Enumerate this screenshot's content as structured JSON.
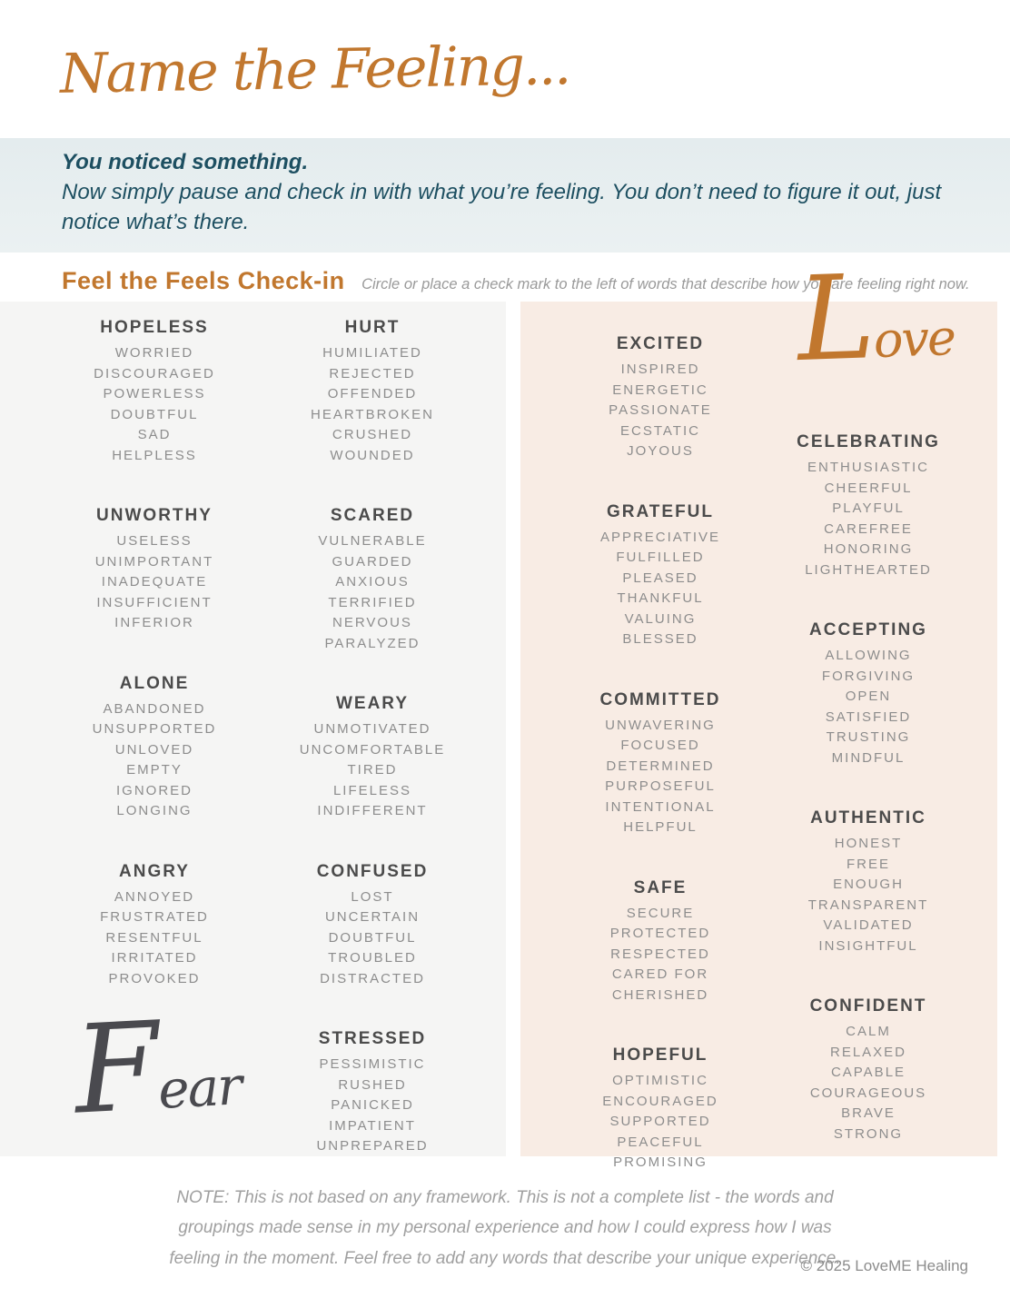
{
  "header": {
    "title": "Name the Feeling..."
  },
  "intro": {
    "line1": "You noticed something.",
    "line2": "Now simply pause and check in with what you’re feeling. You don’t need to figure it out, just notice what’s there."
  },
  "checkin": {
    "title": "Feel the Feels Check-in",
    "instruction": "Circle or place a check mark to the left of words that describe how you are feeling right now."
  },
  "colors": {
    "accent_orange": "#c1772e",
    "teal_text": "#1d4f61",
    "intro_band_bg": "#e7eef0",
    "fear_panel_bg": "#f5f5f4",
    "love_panel_bg": "#f8ece4",
    "heading_gray": "#4b4b4b",
    "word_gray": "#8d8d8d",
    "fear_script_gray": "#4a4a4f"
  },
  "sections": {
    "fear": {
      "label": "Fear",
      "label_cap": "F",
      "label_rest": "ear",
      "columns": [
        {
          "groups": [
            {
              "heading": "HOPELESS",
              "words": [
                "WORRIED",
                "DISCOURAGED",
                "POWERLESS",
                "DOUBTFUL",
                "SAD",
                "HELPLESS"
              ]
            },
            {
              "heading": "UNWORTHY",
              "words": [
                "USELESS",
                "UNIMPORTANT",
                "INADEQUATE",
                "INSUFFICIENT",
                "INFERIOR"
              ]
            },
            {
              "heading": "ALONE",
              "words": [
                "ABANDONED",
                "UNSUPPORTED",
                "UNLOVED",
                "EMPTY",
                "IGNORED",
                "LONGING"
              ]
            },
            {
              "heading": "ANGRY",
              "words": [
                "ANNOYED",
                "FRUSTRATED",
                "RESENTFUL",
                "IRRITATED",
                "PROVOKED"
              ]
            }
          ]
        },
        {
          "groups": [
            {
              "heading": "HURT",
              "words": [
                "HUMILIATED",
                "REJECTED",
                "OFFENDED",
                "HEARTBROKEN",
                "CRUSHED",
                "WOUNDED"
              ]
            },
            {
              "heading": "SCARED",
              "words": [
                "VULNERABLE",
                "GUARDED",
                "ANXIOUS",
                "TERRIFIED",
                "NERVOUS",
                "PARALYZED"
              ]
            },
            {
              "heading": "WEARY",
              "words": [
                "UNMOTIVATED",
                "UNCOMFORTABLE",
                "TIRED",
                "LIFELESS",
                "INDIFFERENT"
              ]
            },
            {
              "heading": "CONFUSED",
              "words": [
                "LOST",
                "UNCERTAIN",
                "DOUBTFUL",
                "TROUBLED",
                "DISTRACTED"
              ]
            },
            {
              "heading": "STRESSED",
              "words": [
                "PESSIMISTIC",
                "RUSHED",
                "PANICKED",
                "IMPATIENT",
                "UNPREPARED"
              ]
            }
          ]
        }
      ]
    },
    "love": {
      "label": "Love",
      "label_cap": "L",
      "label_rest": "ove",
      "columns": [
        {
          "groups": [
            {
              "heading": "EXCITED",
              "words": [
                "INSPIRED",
                "ENERGETIC",
                "PASSIONATE",
                "ECSTATIC",
                "JOYOUS"
              ]
            },
            {
              "heading": "GRATEFUL",
              "words": [
                "APPRECIATIVE",
                "FULFILLED",
                "PLEASED",
                "THANKFUL",
                "VALUING",
                "BLESSED"
              ]
            },
            {
              "heading": "COMMITTED",
              "words": [
                "UNWAVERING",
                "FOCUSED",
                "DETERMINED",
                "PURPOSEFUL",
                "INTENTIONAL",
                "HELPFUL"
              ]
            },
            {
              "heading": "SAFE",
              "words": [
                "SECURE",
                "PROTECTED",
                "RESPECTED",
                "CARED FOR",
                "CHERISHED"
              ]
            },
            {
              "heading": "HOPEFUL",
              "words": [
                "OPTIMISTIC",
                "ENCOURAGED",
                "SUPPORTED",
                "PEACEFUL",
                "PROMISING"
              ]
            }
          ]
        },
        {
          "groups": [
            {
              "heading": "CELEBRATING",
              "words": [
                "ENTHUSIASTIC",
                "CHEERFUL",
                "PLAYFUL",
                "CAREFREE",
                "HONORING",
                "LIGHTHEARTED"
              ]
            },
            {
              "heading": "ACCEPTING",
              "words": [
                "ALLOWING",
                "FORGIVING",
                "OPEN",
                "SATISFIED",
                "TRUSTING",
                "MINDFUL"
              ]
            },
            {
              "heading": "AUTHENTIC",
              "words": [
                "HONEST",
                "FREE",
                "ENOUGH",
                "TRANSPARENT",
                "VALIDATED",
                "INSIGHTFUL"
              ]
            },
            {
              "heading": "CONFIDENT",
              "words": [
                "CALM",
                "RELAXED",
                "CAPABLE",
                "COURAGEOUS",
                "BRAVE",
                "STRONG"
              ]
            }
          ]
        }
      ]
    }
  },
  "footer": {
    "note": "NOTE:  This is not based on any framework.  This is not a complete list - the words and groupings made sense in my personal experience and how I could express how I was feeling in the moment.  Feel free to add any words that describe your unique experience.",
    "copyright": "© 2025 LoveME Healing"
  }
}
